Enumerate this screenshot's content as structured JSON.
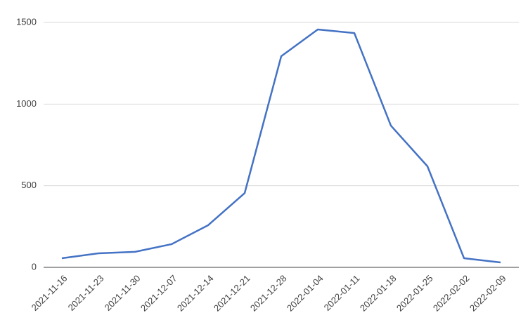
{
  "chart_data": {
    "type": "line",
    "categories": [
      "2021-11-16",
      "2021-11-23",
      "2021-11-30",
      "2021-12-07",
      "2021-12-14",
      "2021-12-21",
      "2021-12-28",
      "2022-01-04",
      "2022-01-11",
      "2022-01-18",
      "2022-01-25",
      "2022-02-02",
      "2022-02-09"
    ],
    "series": [
      {
        "color": "#4472c4",
        "values": [
          56,
          86,
          95,
          142,
          258,
          455,
          1293,
          1457,
          1435,
          868,
          619,
          56,
          30
        ]
      }
    ],
    "ylim": [
      0,
      1500
    ],
    "yticks": [
      0,
      500,
      1000,
      1500
    ],
    "grid": true
  }
}
